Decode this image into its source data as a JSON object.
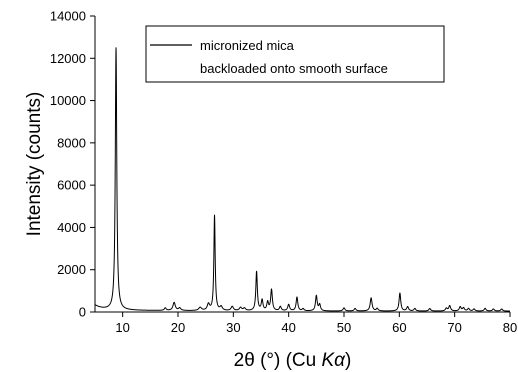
{
  "chart_data": {
    "type": "line",
    "title": "",
    "xlabel": {
      "prefix": "2θ (°) (Cu ",
      "italic": "Kα",
      "suffix": ")"
    },
    "ylabel": "Intensity (counts)",
    "xlim": [
      5,
      80
    ],
    "ylim": [
      0,
      14000
    ],
    "xticks": [
      10,
      20,
      30,
      40,
      50,
      60,
      70,
      80
    ],
    "yticks": [
      0,
      2000,
      4000,
      6000,
      8000,
      10000,
      12000,
      14000
    ],
    "grid": false,
    "legend": {
      "position": "top-right",
      "lines": [
        "micronized mica",
        "backloaded onto smooth surface"
      ]
    },
    "series": [
      {
        "name": "micronized mica backloaded onto smooth surface",
        "color": "#000000",
        "peaks": [
          {
            "x": 8.8,
            "y": 12400,
            "w": 0.16
          },
          {
            "x": 17.7,
            "y": 120,
            "w": 0.2
          },
          {
            "x": 19.3,
            "y": 380,
            "w": 0.25
          },
          {
            "x": 20.3,
            "y": 120,
            "w": 0.25
          },
          {
            "x": 24.0,
            "y": 150,
            "w": 0.3
          },
          {
            "x": 25.5,
            "y": 300,
            "w": 0.25
          },
          {
            "x": 26.6,
            "y": 4500,
            "w": 0.14
          },
          {
            "x": 27.8,
            "y": 180,
            "w": 0.25
          },
          {
            "x": 29.8,
            "y": 200,
            "w": 0.25
          },
          {
            "x": 31.3,
            "y": 150,
            "w": 0.25
          },
          {
            "x": 32.0,
            "y": 120,
            "w": 0.25
          },
          {
            "x": 34.2,
            "y": 1850,
            "w": 0.16
          },
          {
            "x": 35.2,
            "y": 500,
            "w": 0.18
          },
          {
            "x": 36.2,
            "y": 400,
            "w": 0.18
          },
          {
            "x": 36.9,
            "y": 1000,
            "w": 0.18
          },
          {
            "x": 38.5,
            "y": 200,
            "w": 0.2
          },
          {
            "x": 40.0,
            "y": 300,
            "w": 0.2
          },
          {
            "x": 41.5,
            "y": 650,
            "w": 0.18
          },
          {
            "x": 42.6,
            "y": 100,
            "w": 0.2
          },
          {
            "x": 45.0,
            "y": 720,
            "w": 0.18
          },
          {
            "x": 45.6,
            "y": 300,
            "w": 0.18
          },
          {
            "x": 50.0,
            "y": 150,
            "w": 0.2
          },
          {
            "x": 52.0,
            "y": 120,
            "w": 0.2
          },
          {
            "x": 54.9,
            "y": 620,
            "w": 0.2
          },
          {
            "x": 56.0,
            "y": 120,
            "w": 0.2
          },
          {
            "x": 60.1,
            "y": 850,
            "w": 0.18
          },
          {
            "x": 61.5,
            "y": 200,
            "w": 0.2
          },
          {
            "x": 62.8,
            "y": 120,
            "w": 0.2
          },
          {
            "x": 65.5,
            "y": 120,
            "w": 0.2
          },
          {
            "x": 68.5,
            "y": 130,
            "w": 0.2
          },
          {
            "x": 69.1,
            "y": 250,
            "w": 0.2
          },
          {
            "x": 71.0,
            "y": 200,
            "w": 0.2
          },
          {
            "x": 71.6,
            "y": 150,
            "w": 0.2
          },
          {
            "x": 72.5,
            "y": 120,
            "w": 0.2
          },
          {
            "x": 73.5,
            "y": 100,
            "w": 0.2
          },
          {
            "x": 75.5,
            "y": 130,
            "w": 0.2
          },
          {
            "x": 77.0,
            "y": 100,
            "w": 0.2
          },
          {
            "x": 78.5,
            "y": 100,
            "w": 0.2
          }
        ]
      }
    ]
  }
}
